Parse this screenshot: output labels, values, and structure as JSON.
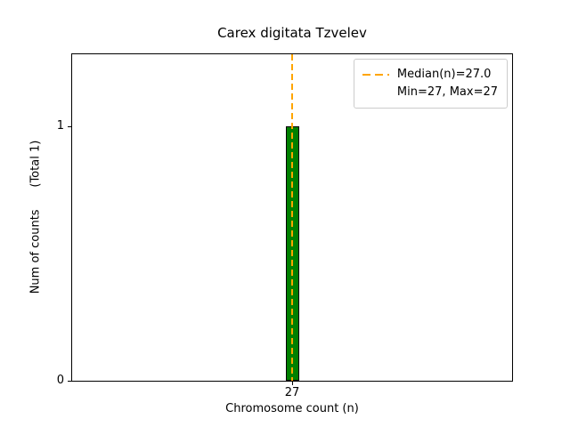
{
  "chart_data": {
    "type": "bar",
    "title": "Carex digitata Tzvelev",
    "xlabel": "Chromosome count (n)",
    "ylabel": "Num of counts      (Total 1)",
    "categories": [
      27
    ],
    "values": [
      1
    ],
    "total_counts": 1,
    "xticks": [
      "27"
    ],
    "yticks": [
      0,
      1
    ],
    "ylim": [
      0,
      1.29
    ],
    "grid": false,
    "bar_color": "#008000",
    "bar_edge_color": "#000000",
    "median_line_color": "#ffa500",
    "median_line_style": "dashed",
    "median": 27.0,
    "min": 27,
    "max": 27,
    "legend_position": "upper right",
    "legend_labels": [
      "Median(n)=27.0",
      "Min=27, Max=27"
    ]
  }
}
